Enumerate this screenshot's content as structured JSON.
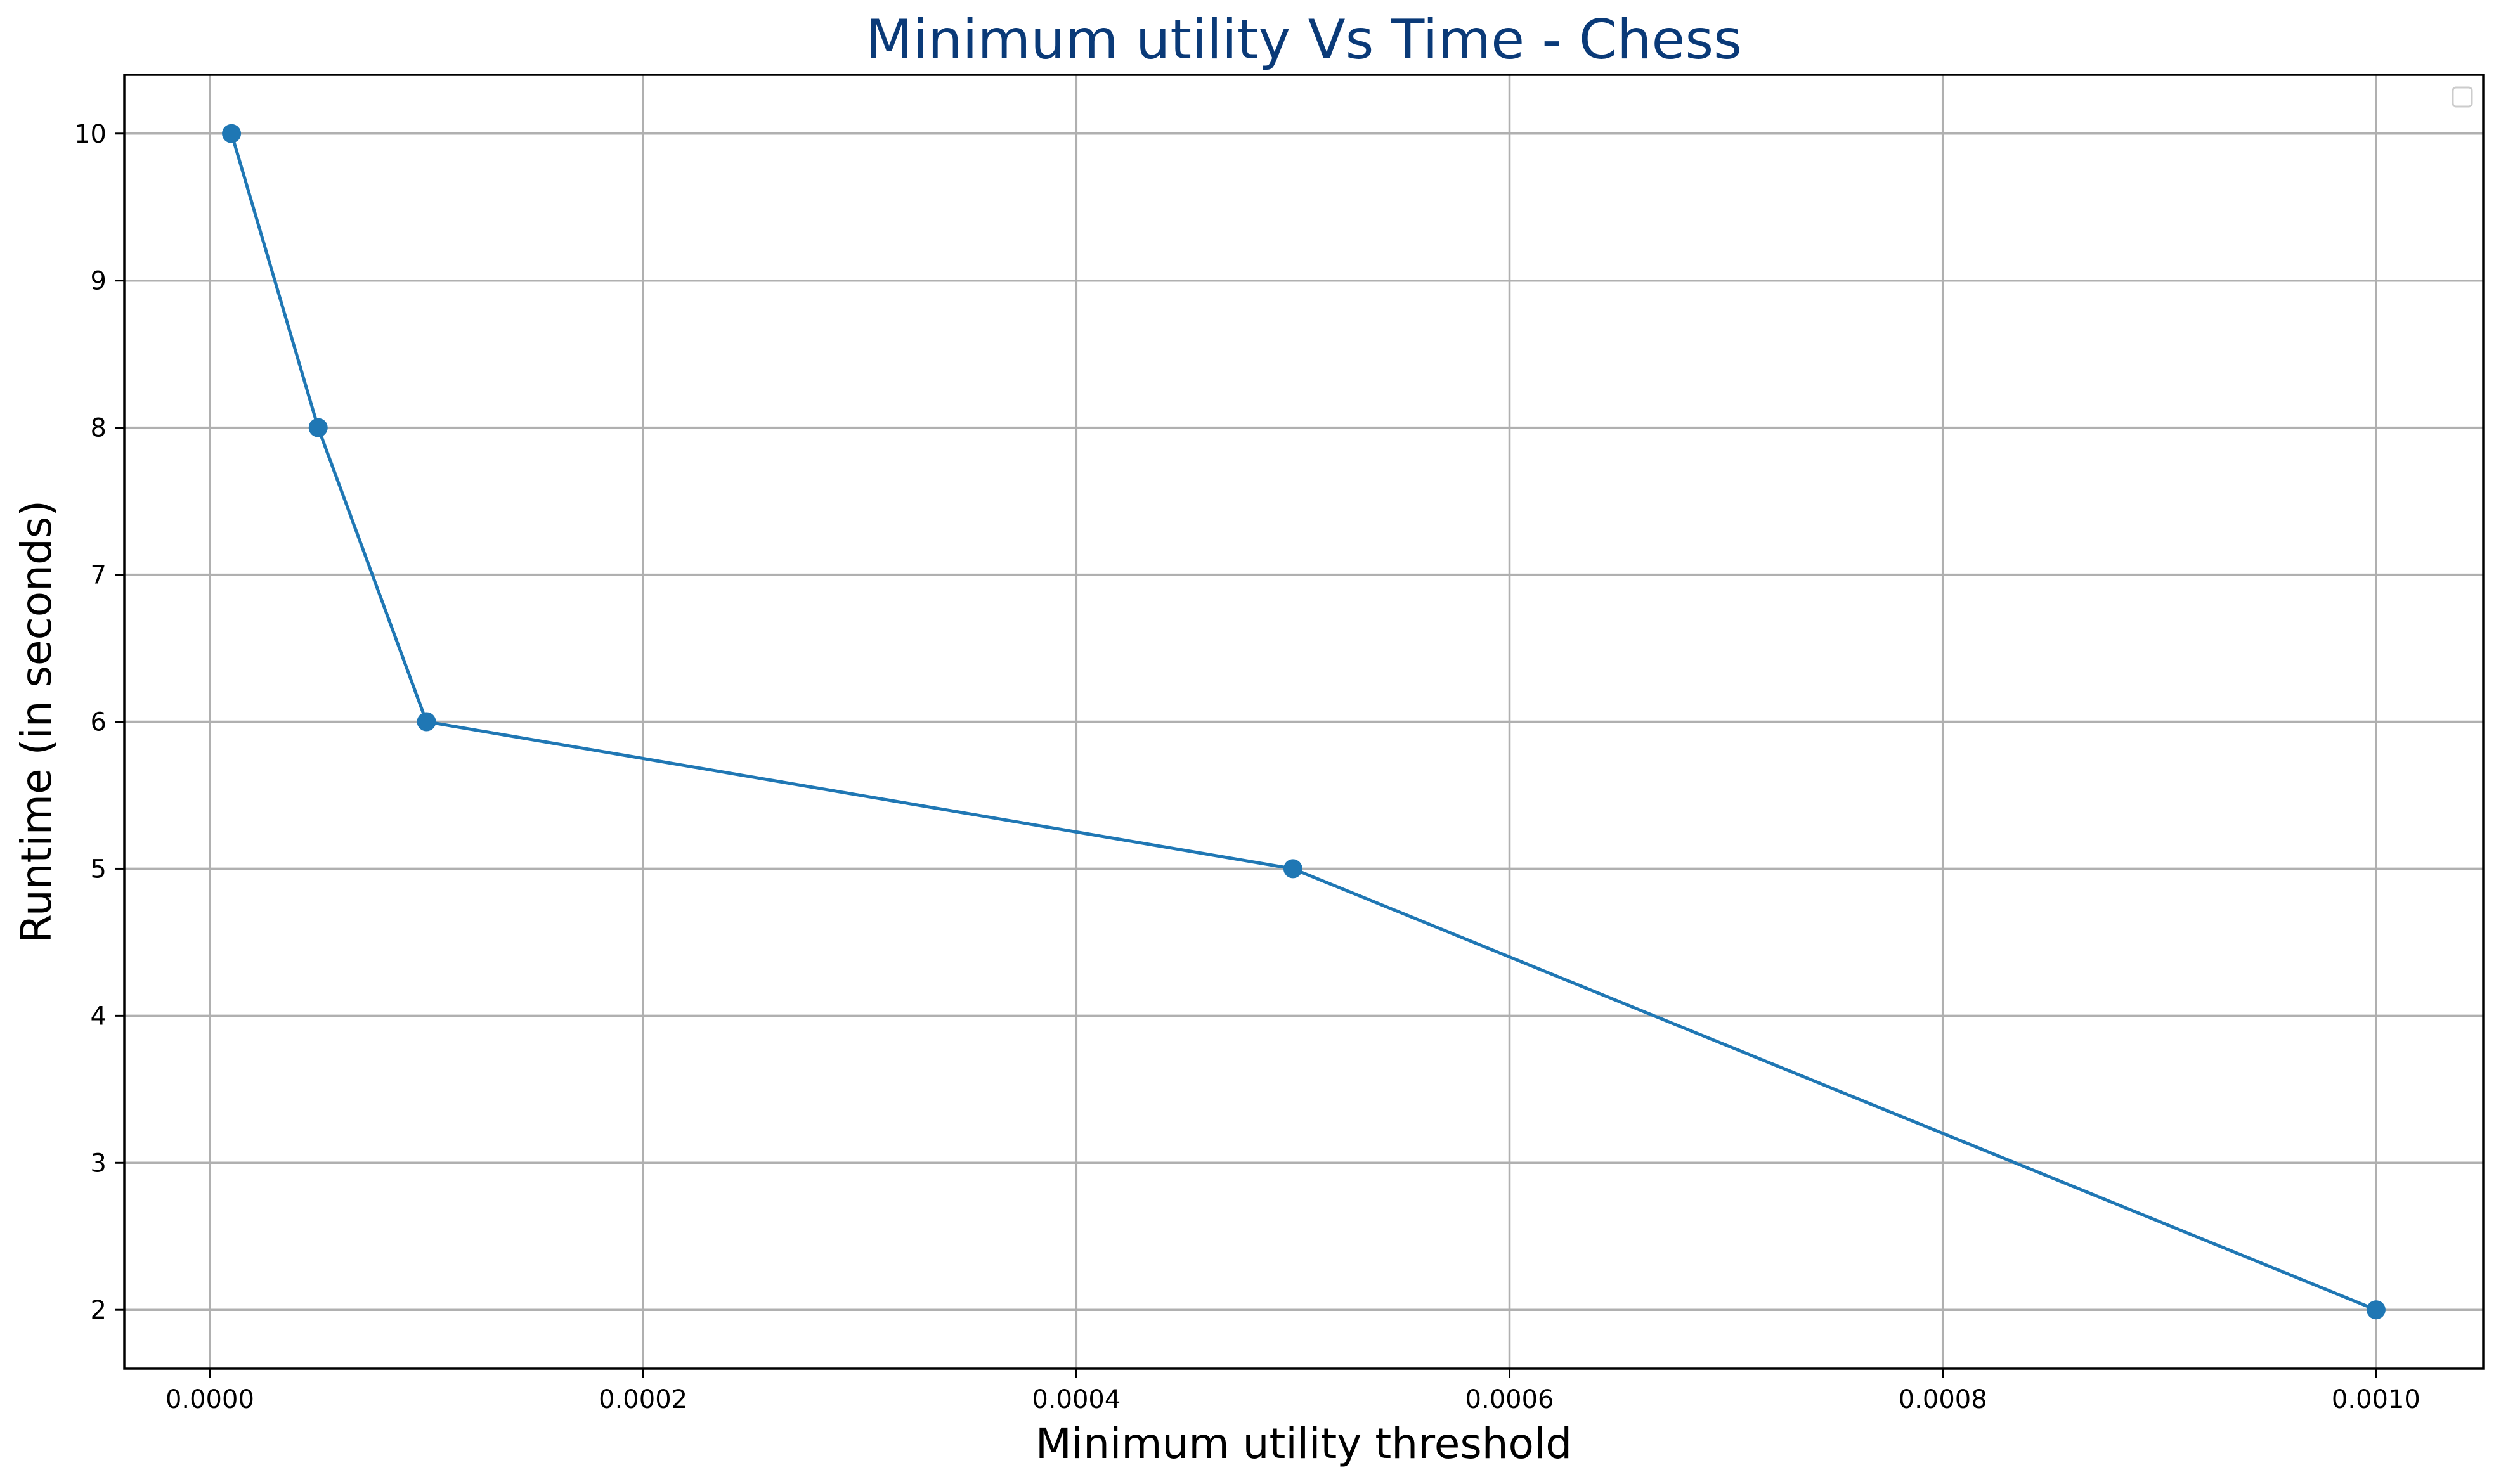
{
  "chart_data": {
    "type": "line",
    "title": "Minimum utility Vs Time - Chess",
    "xlabel": "Minimum utility threshold",
    "ylabel": "Runtime (in seconds)",
    "x_ticks": [
      "0.0000",
      "0.0002",
      "0.0004",
      "0.0006",
      "0.0008",
      "0.0010"
    ],
    "x_tick_values": [
      0.0,
      0.0002,
      0.0004,
      0.0006,
      0.0008,
      0.001
    ],
    "y_ticks": [
      "2",
      "3",
      "4",
      "5",
      "6",
      "7",
      "8",
      "9",
      "10"
    ],
    "y_tick_values": [
      2,
      3,
      4,
      5,
      6,
      7,
      8,
      9,
      10
    ],
    "xlim": [
      -3.95e-05,
      0.0010495
    ],
    "ylim": [
      1.6,
      10.4
    ],
    "grid": true,
    "legend": {
      "placement": "top-right",
      "entries": []
    },
    "series": [
      {
        "color": "#1f77b4",
        "marker": "circle",
        "x": [
          1e-05,
          5e-05,
          0.0001,
          0.0005,
          0.001
        ],
        "y": [
          10,
          8,
          6,
          5,
          2
        ]
      }
    ]
  }
}
